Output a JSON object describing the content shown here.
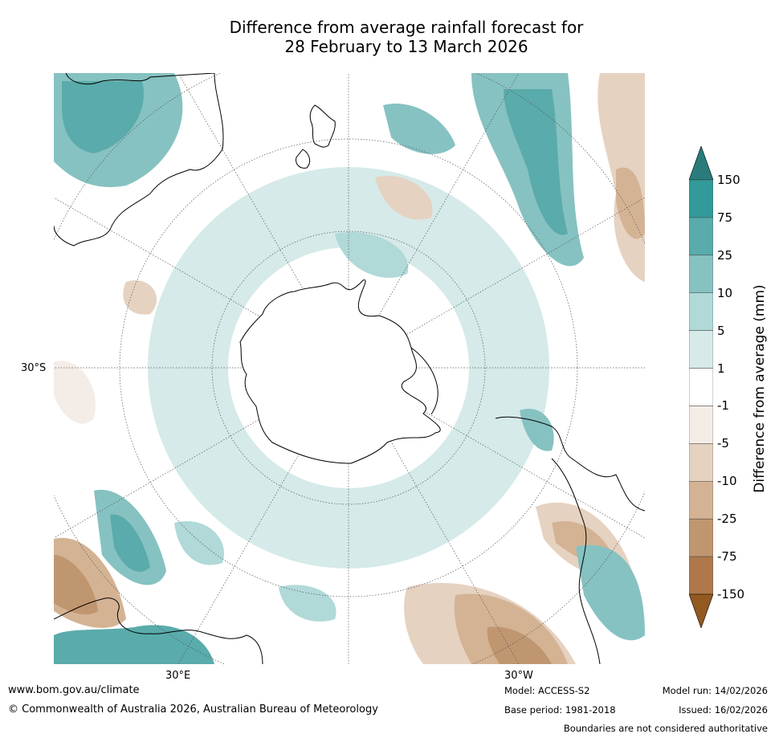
{
  "title_line1": "Difference from average rainfall forecast for",
  "title_line2": "28 February to 13 March 2026",
  "map": {
    "projection": "south polar stereographic",
    "lat_label": "30°S",
    "lon_labels": {
      "east": "30°E",
      "west": "30°W"
    },
    "land_outline_color": "#000000",
    "background_color": "#ffffff"
  },
  "legend": {
    "title": "Difference from average (mm)",
    "levels": [
      "150",
      "75",
      "25",
      "10",
      "5",
      "1",
      "-1",
      "-5",
      "-10",
      "-25",
      "-75",
      "-150"
    ],
    "colors": [
      "#2a7c7c",
      "#329a9a",
      "#5aabab",
      "#86c2c1",
      "#b0d9d8",
      "#d5eae9",
      "#ffffff",
      "#f4ece7",
      "#e6d2c1",
      "#d4b394",
      "#c09670",
      "#ae784a",
      "#925920"
    ],
    "extend": "both"
  },
  "footer": {
    "website": "www.bom.gov.au/climate",
    "copyright": "© Commonwealth of Australia 2026, Australian Bureau of Meteorology",
    "model": "Model: ACCESS-S2",
    "base_period": "Base period: 1981-2018",
    "model_run": "Model run: 14/02/2026",
    "issued": "Issued: 16/02/2026",
    "disclaimer": "Boundaries are not considered authoritative"
  }
}
